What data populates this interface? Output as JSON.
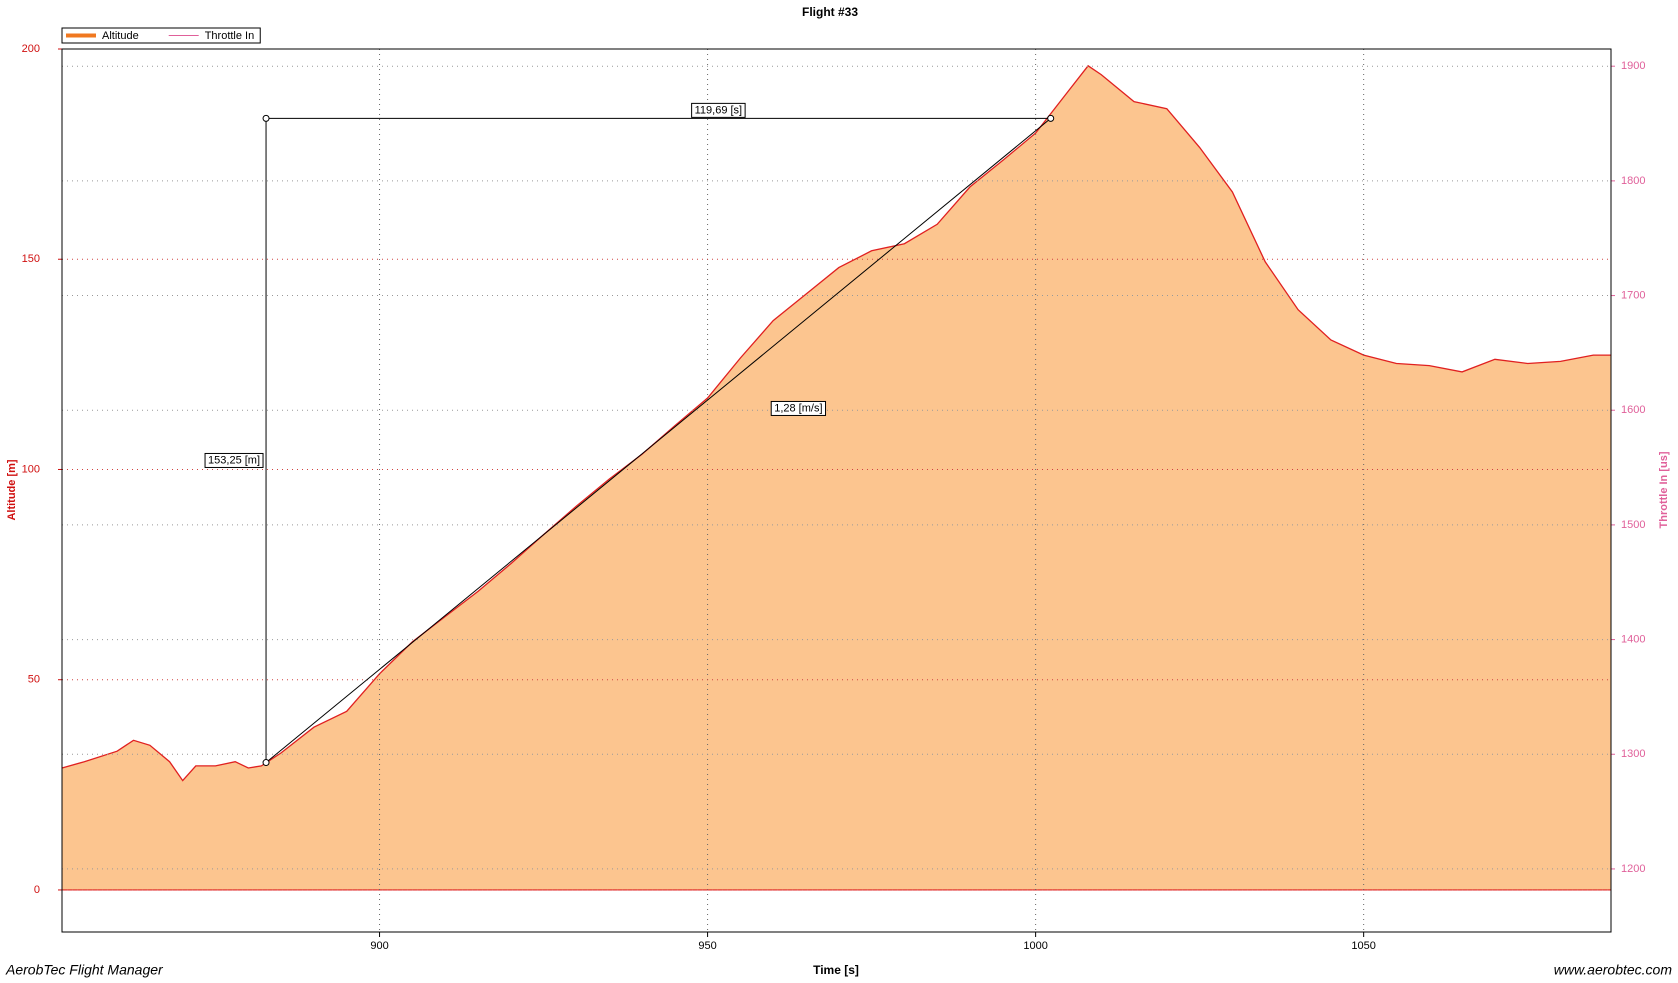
{
  "chart_data": {
    "type": "area",
    "title": "Flight #33",
    "x_label": "Time [s]",
    "y_label": "Altitude [m]",
    "y2_label": "Throttle In [us]",
    "x": [
      851.6,
      855,
      860,
      862.5,
      865,
      868,
      870,
      872,
      875,
      878,
      880,
      882,
      885,
      890,
      895,
      900,
      905,
      910,
      915,
      920,
      925,
      930,
      935,
      940,
      945,
      950,
      955,
      960,
      965,
      970,
      975,
      980,
      985,
      990,
      995,
      1000,
      1005,
      1008,
      1010,
      1015,
      1020,
      1025,
      1030,
      1035,
      1040,
      1045,
      1050,
      1055,
      1060,
      1065,
      1070,
      1075,
      1080,
      1085,
      1087.7
    ],
    "series": [
      {
        "name": "Altitude",
        "color": "#e02020",
        "fill": "#fcc58f",
        "values": [
          29,
          30.5,
          33,
          35.6,
          34.4,
          30.5,
          26,
          29.5,
          29.5,
          30.5,
          29,
          29.5,
          32.6,
          38.7,
          42.5,
          51.4,
          59,
          65,
          71,
          77.6,
          84.5,
          91.3,
          97.7,
          103.6,
          110.4,
          117,
          126.5,
          135.4,
          141.7,
          148,
          152,
          153.7,
          158.3,
          167.2,
          173.5,
          180,
          190,
          196,
          193.9,
          187.5,
          185.8,
          176.6,
          166,
          149.4,
          138,
          130.8,
          127.2,
          125.2,
          124.7,
          123.2,
          126.2,
          125.2,
          125.7,
          127.2,
          127.2
        ]
      },
      {
        "name": "Throttle In",
        "color": "#e0609a",
        "axis": "y2",
        "values": [
          null,
          null,
          null,
          null,
          null,
          null,
          null,
          null,
          null,
          null,
          null,
          null,
          null,
          null,
          null,
          null,
          null,
          null,
          null,
          null,
          null,
          null,
          null,
          null,
          null,
          null,
          null,
          null,
          null,
          null,
          null,
          null,
          null,
          null,
          null,
          null,
          null,
          null,
          null,
          null,
          null,
          null,
          null,
          null,
          null,
          null,
          null,
          null,
          null,
          null,
          null,
          null,
          null,
          null,
          null
        ]
      }
    ],
    "xlim": [
      851.6,
      1087.7
    ],
    "xticks": [
      900,
      950,
      1000,
      1050
    ],
    "ylim": [
      -10,
      200
    ],
    "yticks": [
      0,
      50,
      100,
      150,
      200
    ],
    "y2lim": [
      1145,
      1915
    ],
    "y2ticks": [
      1200,
      1300,
      1400,
      1500,
      1600,
      1700,
      1800,
      1900
    ],
    "grid": true,
    "measurement": {
      "x": [
        882.7,
        1002.3
      ],
      "y": [
        30.3,
        183.5
      ],
      "dx_label": "119,69 [s]",
      "dy_label": "153,25 [m]",
      "slope_label": "1,28 [m/s]"
    }
  },
  "footer": {
    "left": "AerobTec Flight Manager",
    "right": "www.aerobtec.com"
  }
}
